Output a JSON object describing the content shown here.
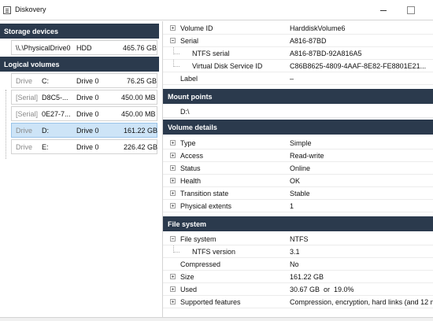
{
  "window": {
    "title": "Diskovery"
  },
  "left": {
    "storage_header": "Storage devices",
    "storage_devices": [
      {
        "name": "\\\\.\\PhysicalDrive0",
        "type": "HDD",
        "size": "465.76 GB"
      }
    ],
    "logical_header": "Logical volumes",
    "volumes": [
      {
        "kind": "Drive",
        "id": "C:",
        "drive": "Drive 0",
        "size": "76.25 GB"
      },
      {
        "kind": "[Serial]",
        "id": "D8C5-...",
        "drive": "Drive 0",
        "size": "450.00 MB"
      },
      {
        "kind": "[Serial]",
        "id": "0E27-7...",
        "drive": "Drive 0",
        "size": "450.00 MB"
      },
      {
        "kind": "Drive",
        "id": "D:",
        "drive": "Drive 0",
        "size": "161.22 GB"
      },
      {
        "kind": "Drive",
        "id": "E:",
        "drive": "Drive 0",
        "size": "226.42 GB"
      }
    ]
  },
  "details": {
    "volume_id": {
      "name": "Volume ID",
      "value": "HarddiskVolume6"
    },
    "serial": {
      "name": "Serial",
      "value": "A816-87BD"
    },
    "ntfs_serial": {
      "name": "NTFS serial",
      "value": "A816-87BD-92A816A5"
    },
    "vds_id": {
      "name": "Virtual Disk Service ID",
      "value": "C86B8625-4809-4AAF-8E82-FE8801E21..."
    },
    "label": {
      "name": "Label",
      "value": "–"
    },
    "mount_header": "Mount points",
    "mount_point": "D:\\",
    "volume_header": "Volume details",
    "type": {
      "name": "Type",
      "value": "Simple"
    },
    "access": {
      "name": "Access",
      "value": "Read-write"
    },
    "status": {
      "name": "Status",
      "value": "Online"
    },
    "health": {
      "name": "Health",
      "value": "OK"
    },
    "transition": {
      "name": "Transition state",
      "value": "Stable"
    },
    "extents": {
      "name": "Physical extents",
      "value": "1"
    },
    "fs_header": "File system",
    "file_system": {
      "name": "File system",
      "value": "NTFS"
    },
    "ntfs_version": {
      "name": "NTFS version",
      "value": "3.1"
    },
    "compressed": {
      "name": "Compressed",
      "value": "No"
    },
    "size": {
      "name": "Size",
      "value": "161.22 GB"
    },
    "used": {
      "name": "Used",
      "value": "30.67 GB  or  19.0%"
    },
    "features": {
      "name": "Supported features",
      "value": "Compression, encryption, hard links (and 12 m"
    }
  }
}
